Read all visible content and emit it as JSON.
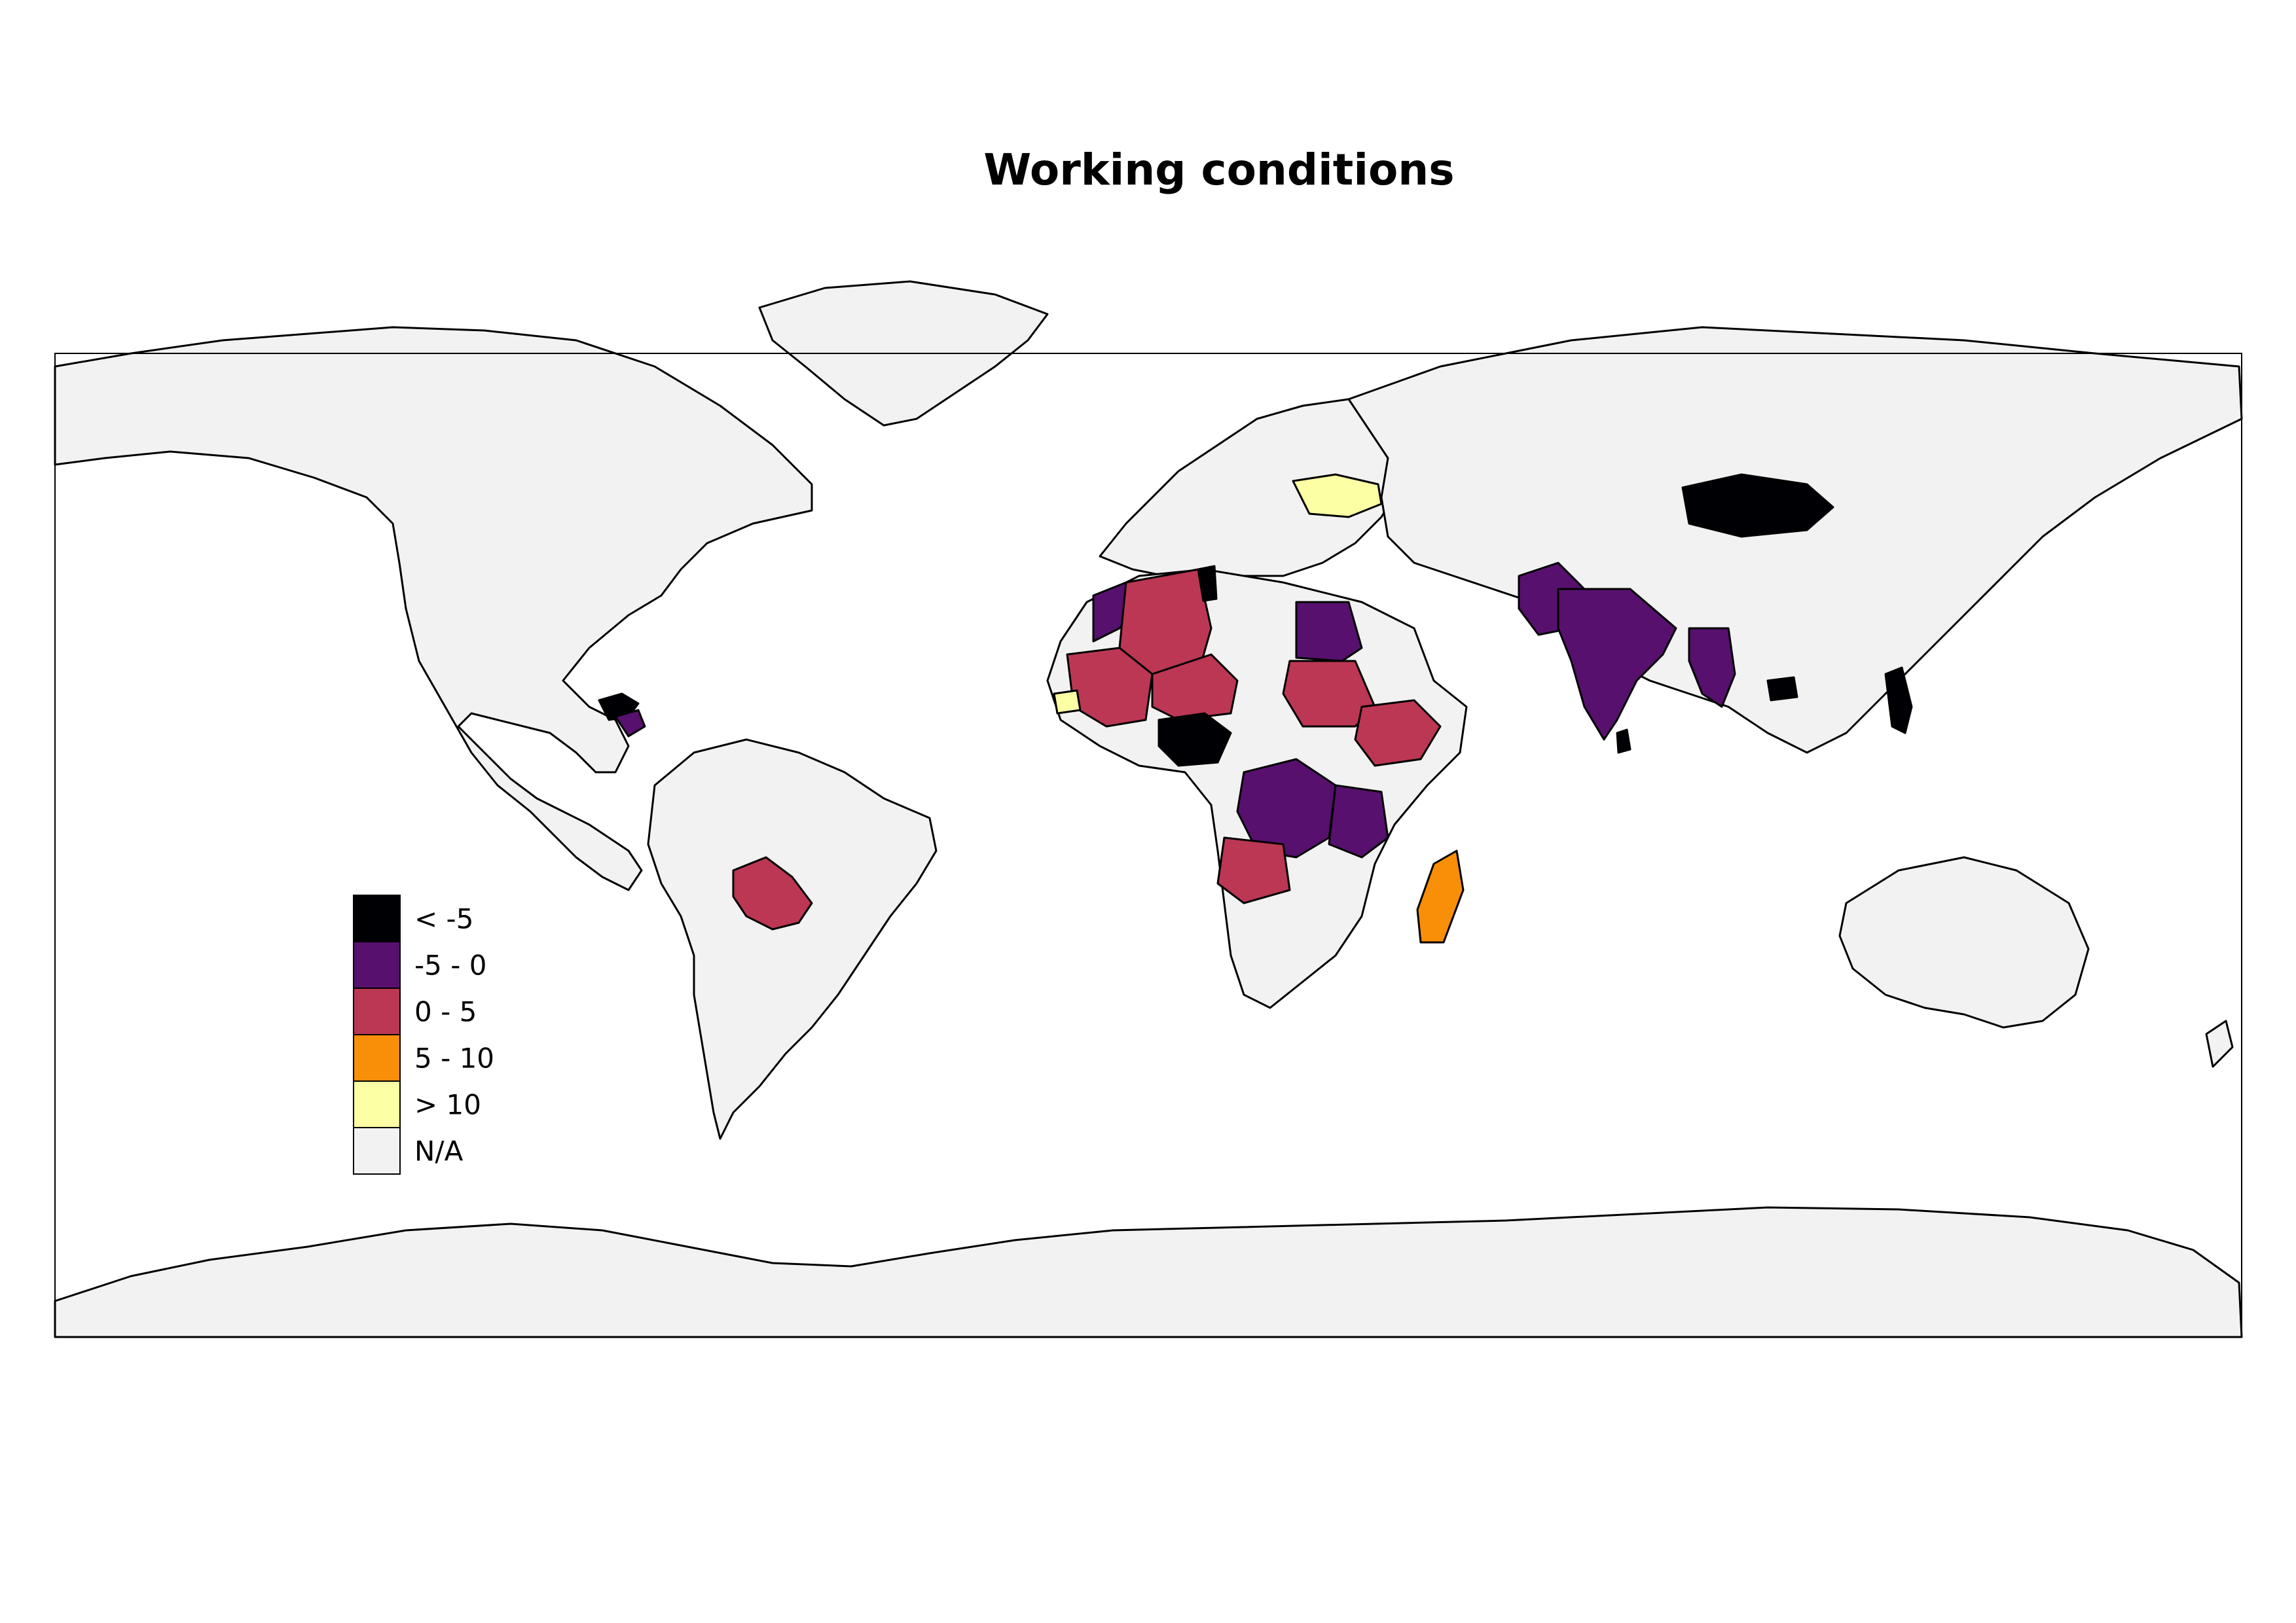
{
  "title": "Working conditions",
  "colors": {
    "na": "#f2f2f2",
    "lt_neg5": "#000004",
    "neg5_0": "#57106e",
    "0_5": "#bc3754",
    "5_10": "#f98e09",
    "gt_10": "#fcffa4"
  },
  "legend": [
    {
      "label": "< -5",
      "color": "#000004"
    },
    {
      "label": "-5 - 0",
      "color": "#57106e"
    },
    {
      "label": "0 - 5",
      "color": "#bc3754"
    },
    {
      "label": "5 - 10",
      "color": "#f98e09"
    },
    {
      "label": "> 10",
      "color": "#fcffa4"
    },
    {
      "label": "N/A",
      "color": "#f2f2f2"
    }
  ],
  "countries": [
    {
      "name": "Mongolia",
      "class": "< -5"
    },
    {
      "name": "Nigeria",
      "class": "< -5"
    },
    {
      "name": "Tunisia",
      "class": "< -5"
    },
    {
      "name": "Honduras",
      "class": "< -5"
    },
    {
      "name": "Cambodia",
      "class": "< -5"
    },
    {
      "name": "Philippines",
      "class": "< -5"
    },
    {
      "name": "India",
      "class": "-5 - 0"
    },
    {
      "name": "Pakistan",
      "class": "-5 - 0"
    },
    {
      "name": "Myanmar",
      "class": "-5 - 0"
    },
    {
      "name": "Egypt",
      "class": "-5 - 0"
    },
    {
      "name": "DR Congo",
      "class": "-5 - 0"
    },
    {
      "name": "Tanzania",
      "class": "-5 - 0"
    },
    {
      "name": "Morocco",
      "class": "-5 - 0"
    },
    {
      "name": "Algeria",
      "class": "0 - 5"
    },
    {
      "name": "Mali",
      "class": "0 - 5"
    },
    {
      "name": "Niger",
      "class": "0 - 5"
    },
    {
      "name": "Sudan",
      "class": "0 - 5"
    },
    {
      "name": "Ethiopia",
      "class": "0 - 5"
    },
    {
      "name": "Angola",
      "class": "0 - 5"
    },
    {
      "name": "Bolivia",
      "class": "0 - 5"
    },
    {
      "name": "Yemen",
      "class": "0 - 5"
    },
    {
      "name": "Madagascar",
      "class": "5 - 10"
    },
    {
      "name": "Ukraine",
      "class": "> 10"
    },
    {
      "name": "Senegal",
      "class": "> 10"
    }
  ]
}
